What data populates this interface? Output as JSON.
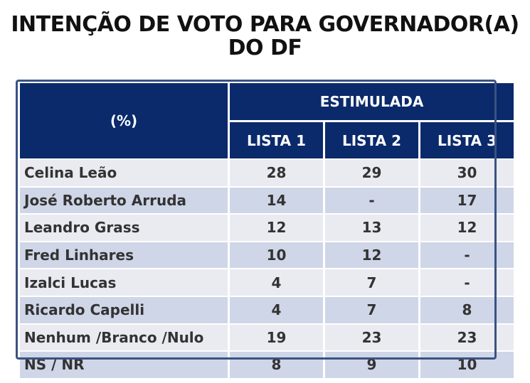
{
  "title_line1": "INTENÇÃO DE VOTO PARA GOVERNADOR(A)",
  "title_line2": "DO DF",
  "colors": {
    "header_bg": "#0b2a6b",
    "row_light": "#e9ebf1",
    "row_dark": "#cfd6e7",
    "frame": "#3a5283"
  },
  "chart_data": {
    "type": "table",
    "title": "INTENÇÃO DE VOTO PARA GOVERNADOR(A) DO DF",
    "row_header_label": "(%)",
    "group_label": "ESTIMULADA",
    "columns": [
      "LISTA 1",
      "LISTA 2",
      "LISTA 3"
    ],
    "rows": [
      {
        "name": "Celina Leão",
        "values": [
          "28",
          "29",
          "30"
        ]
      },
      {
        "name": "José Roberto Arruda",
        "values": [
          "14",
          "-",
          "17"
        ]
      },
      {
        "name": "Leandro Grass",
        "values": [
          "12",
          "13",
          "12"
        ]
      },
      {
        "name": "Fred Linhares",
        "values": [
          "10",
          "12",
          "-"
        ]
      },
      {
        "name": "Izalci Lucas",
        "values": [
          "4",
          "7",
          "-"
        ]
      },
      {
        "name": "Ricardo Capelli",
        "values": [
          "4",
          "7",
          "8"
        ]
      },
      {
        "name": "Nenhum /Branco /Nulo",
        "values": [
          "19",
          "23",
          "23"
        ]
      },
      {
        "name": "NS / NR",
        "values": [
          "8",
          "9",
          "10"
        ]
      }
    ]
  }
}
